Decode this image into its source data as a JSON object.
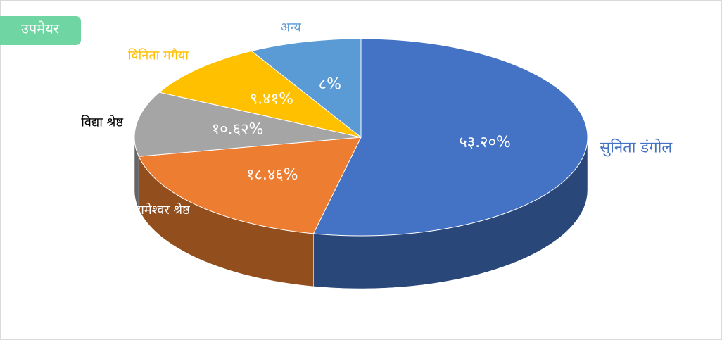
{
  "chart_data": {
    "type": "pie3d",
    "title": "उपमेयर",
    "categories": [
      "सुनिता डंगोल",
      "रामेश्वर श्रेष्ठ",
      "विद्या श्रेष्ठ",
      "विनिता मगैया",
      "अन्य"
    ],
    "values": [
      53.2,
      18.46,
      10.62,
      9.41,
      8
    ],
    "value_labels": [
      "५३.२०%",
      "१८.४६%",
      "१०.६२%",
      "९.४१%",
      "८%"
    ],
    "colors": [
      "#4472c4",
      "#ed7d31",
      "#a5a5a5",
      "#ffc000",
      "#5b9bd5"
    ],
    "label_colors": [
      "#4472c4",
      "#ffffff",
      "#000000",
      "#ffc000",
      "#5b9bd5"
    ]
  }
}
